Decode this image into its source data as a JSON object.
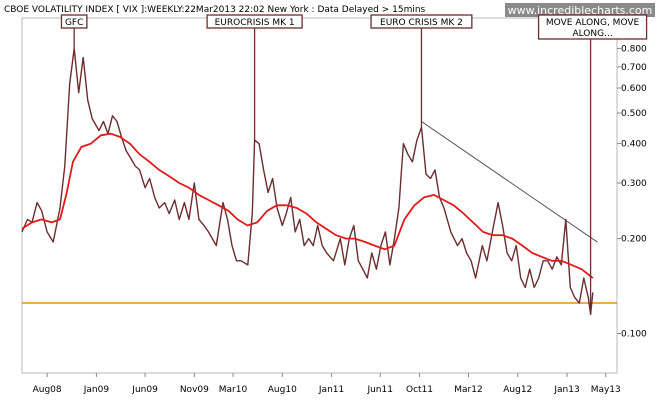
{
  "header": {
    "title": "CBOE VOLATILITY INDEX [ VIX ]:WEEKLY:22Mar2013 22:02 New York : Data Delayed > 15mins",
    "watermark": "www.incrediblecharts.com"
  },
  "chart_data": {
    "type": "line",
    "y_scale": "log",
    "ylim": [
      0.075,
      1.0
    ],
    "xlim": [
      "2008-05-15",
      "2013-06-05"
    ],
    "x_ticks": [
      {
        "label": "Aug08",
        "date": "2008-08-01"
      },
      {
        "label": "Jan09",
        "date": "2009-01-01"
      },
      {
        "label": "Jun09",
        "date": "2009-06-01"
      },
      {
        "label": "Nov09",
        "date": "2009-11-01"
      },
      {
        "label": "Mar10",
        "date": "2010-03-01"
      },
      {
        "label": "Aug10",
        "date": "2010-08-01"
      },
      {
        "label": "Jan11",
        "date": "2011-01-01"
      },
      {
        "label": "Jun11",
        "date": "2011-06-01"
      },
      {
        "label": "Oct11",
        "date": "2011-10-01"
      },
      {
        "label": "Mar12",
        "date": "2012-03-01"
      },
      {
        "label": "Aug12",
        "date": "2012-08-01"
      },
      {
        "label": "Jan13",
        "date": "2013-01-01"
      },
      {
        "label": "May13",
        "date": "2013-05-01"
      }
    ],
    "y_ticks": [
      {
        "label": "0.900",
        "value": 0.9
      },
      {
        "label": "0.800",
        "value": 0.8
      },
      {
        "label": "0.700",
        "value": 0.7
      },
      {
        "label": "0.600",
        "value": 0.6
      },
      {
        "label": "0.500",
        "value": 0.5
      },
      {
        "label": "0.400",
        "value": 0.4
      },
      {
        "label": "0.300",
        "value": 0.3
      },
      {
        "label": "0.200",
        "value": 0.2
      },
      {
        "label": "0.100",
        "value": 0.1
      }
    ],
    "series": [
      {
        "color": "#6b2d2d",
        "points": [
          [
            "2008-05-15",
            0.21
          ],
          [
            "2008-06-01",
            0.23
          ],
          [
            "2008-06-15",
            0.225
          ],
          [
            "2008-07-01",
            0.26
          ],
          [
            "2008-07-15",
            0.245
          ],
          [
            "2008-08-01",
            0.21
          ],
          [
            "2008-08-20",
            0.195
          ],
          [
            "2008-09-10",
            0.25
          ],
          [
            "2008-09-25",
            0.34
          ],
          [
            "2008-10-10",
            0.62
          ],
          [
            "2008-10-24",
            0.8
          ],
          [
            "2008-11-07",
            0.58
          ],
          [
            "2008-11-21",
            0.75
          ],
          [
            "2008-12-05",
            0.55
          ],
          [
            "2008-12-19",
            0.48
          ],
          [
            "2009-01-09",
            0.44
          ],
          [
            "2009-01-23",
            0.47
          ],
          [
            "2009-02-06",
            0.43
          ],
          [
            "2009-02-20",
            0.49
          ],
          [
            "2009-03-06",
            0.47
          ],
          [
            "2009-03-20",
            0.42
          ],
          [
            "2009-04-03",
            0.38
          ],
          [
            "2009-04-17",
            0.36
          ],
          [
            "2009-05-01",
            0.34
          ],
          [
            "2009-05-15",
            0.33
          ],
          [
            "2009-06-01",
            0.29
          ],
          [
            "2009-06-15",
            0.31
          ],
          [
            "2009-07-01",
            0.27
          ],
          [
            "2009-07-15",
            0.25
          ],
          [
            "2009-08-01",
            0.26
          ],
          [
            "2009-08-15",
            0.24
          ],
          [
            "2009-09-01",
            0.265
          ],
          [
            "2009-09-15",
            0.23
          ],
          [
            "2009-10-01",
            0.26
          ],
          [
            "2009-10-15",
            0.23
          ],
          [
            "2009-11-01",
            0.3
          ],
          [
            "2009-11-15",
            0.23
          ],
          [
            "2009-12-01",
            0.22
          ],
          [
            "2009-12-15",
            0.21
          ],
          [
            "2010-01-08",
            0.19
          ],
          [
            "2010-01-29",
            0.26
          ],
          [
            "2010-02-12",
            0.23
          ],
          [
            "2010-02-26",
            0.19
          ],
          [
            "2010-03-12",
            0.17
          ],
          [
            "2010-03-26",
            0.17
          ],
          [
            "2010-04-16",
            0.165
          ],
          [
            "2010-04-30",
            0.24
          ],
          [
            "2010-05-07",
            0.41
          ],
          [
            "2010-05-21",
            0.4
          ],
          [
            "2010-06-04",
            0.33
          ],
          [
            "2010-06-18",
            0.28
          ],
          [
            "2010-07-02",
            0.31
          ],
          [
            "2010-07-16",
            0.25
          ],
          [
            "2010-08-01",
            0.22
          ],
          [
            "2010-08-13",
            0.24
          ],
          [
            "2010-08-27",
            0.27
          ],
          [
            "2010-09-10",
            0.21
          ],
          [
            "2010-09-24",
            0.23
          ],
          [
            "2010-10-08",
            0.19
          ],
          [
            "2010-10-22",
            0.2
          ],
          [
            "2010-11-05",
            0.19
          ],
          [
            "2010-11-19",
            0.22
          ],
          [
            "2010-12-03",
            0.19
          ],
          [
            "2010-12-17",
            0.18
          ],
          [
            "2011-01-07",
            0.17
          ],
          [
            "2011-01-28",
            0.2
          ],
          [
            "2011-02-11",
            0.165
          ],
          [
            "2011-02-25",
            0.2
          ],
          [
            "2011-03-11",
            0.22
          ],
          [
            "2011-03-25",
            0.17
          ],
          [
            "2011-04-08",
            0.16
          ],
          [
            "2011-04-22",
            0.15
          ],
          [
            "2011-05-06",
            0.18
          ],
          [
            "2011-05-20",
            0.16
          ],
          [
            "2011-06-03",
            0.19
          ],
          [
            "2011-06-17",
            0.21
          ],
          [
            "2011-07-01",
            0.165
          ],
          [
            "2011-07-15",
            0.2
          ],
          [
            "2011-07-29",
            0.25
          ],
          [
            "2011-08-05",
            0.32
          ],
          [
            "2011-08-12",
            0.4
          ],
          [
            "2011-08-26",
            0.37
          ],
          [
            "2011-09-09",
            0.35
          ],
          [
            "2011-09-23",
            0.41
          ],
          [
            "2011-10-07",
            0.45
          ],
          [
            "2011-10-21",
            0.32
          ],
          [
            "2011-11-04",
            0.31
          ],
          [
            "2011-11-18",
            0.33
          ],
          [
            "2011-12-02",
            0.27
          ],
          [
            "2011-12-16",
            0.25
          ],
          [
            "2012-01-06",
            0.21
          ],
          [
            "2012-01-27",
            0.19
          ],
          [
            "2012-02-10",
            0.2
          ],
          [
            "2012-02-24",
            0.18
          ],
          [
            "2012-03-09",
            0.17
          ],
          [
            "2012-03-23",
            0.15
          ],
          [
            "2012-04-13",
            0.19
          ],
          [
            "2012-04-27",
            0.17
          ],
          [
            "2012-05-18",
            0.22
          ],
          [
            "2012-06-01",
            0.26
          ],
          [
            "2012-06-15",
            0.22
          ],
          [
            "2012-06-29",
            0.18
          ],
          [
            "2012-07-13",
            0.17
          ],
          [
            "2012-07-27",
            0.19
          ],
          [
            "2012-08-10",
            0.15
          ],
          [
            "2012-08-24",
            0.14
          ],
          [
            "2012-09-07",
            0.16
          ],
          [
            "2012-09-21",
            0.14
          ],
          [
            "2012-10-05",
            0.15
          ],
          [
            "2012-10-19",
            0.17
          ],
          [
            "2012-11-02",
            0.17
          ],
          [
            "2012-11-16",
            0.16
          ],
          [
            "2012-11-30",
            0.175
          ],
          [
            "2012-12-14",
            0.165
          ],
          [
            "2012-12-28",
            0.23
          ],
          [
            "2013-01-11",
            0.14
          ],
          [
            "2013-01-25",
            0.13
          ],
          [
            "2013-02-08",
            0.125
          ],
          [
            "2013-02-22",
            0.15
          ],
          [
            "2013-03-08",
            0.13
          ],
          [
            "2013-03-15",
            0.115
          ],
          [
            "2013-03-22",
            0.135
          ]
        ]
      },
      {
        "color": "#e11b1b",
        "points": [
          [
            "2008-05-15",
            0.215
          ],
          [
            "2008-06-15",
            0.225
          ],
          [
            "2008-07-15",
            0.23
          ],
          [
            "2008-08-15",
            0.225
          ],
          [
            "2008-09-10",
            0.23
          ],
          [
            "2008-10-01",
            0.28
          ],
          [
            "2008-10-20",
            0.35
          ],
          [
            "2008-11-15",
            0.39
          ],
          [
            "2008-12-15",
            0.4
          ],
          [
            "2009-01-15",
            0.425
          ],
          [
            "2009-02-15",
            0.43
          ],
          [
            "2009-03-15",
            0.42
          ],
          [
            "2009-04-15",
            0.4
          ],
          [
            "2009-05-15",
            0.37
          ],
          [
            "2009-06-15",
            0.35
          ],
          [
            "2009-07-15",
            0.33
          ],
          [
            "2009-08-15",
            0.315
          ],
          [
            "2009-09-15",
            0.3
          ],
          [
            "2009-10-15",
            0.29
          ],
          [
            "2009-11-15",
            0.275
          ],
          [
            "2009-12-15",
            0.265
          ],
          [
            "2010-01-15",
            0.255
          ],
          [
            "2010-02-15",
            0.245
          ],
          [
            "2010-03-15",
            0.23
          ],
          [
            "2010-04-15",
            0.22
          ],
          [
            "2010-05-15",
            0.225
          ],
          [
            "2010-06-15",
            0.245
          ],
          [
            "2010-07-15",
            0.255
          ],
          [
            "2010-08-15",
            0.255
          ],
          [
            "2010-09-15",
            0.25
          ],
          [
            "2010-10-15",
            0.24
          ],
          [
            "2010-11-15",
            0.225
          ],
          [
            "2010-12-15",
            0.215
          ],
          [
            "2011-01-15",
            0.205
          ],
          [
            "2011-02-15",
            0.2
          ],
          [
            "2011-03-15",
            0.2
          ],
          [
            "2011-04-15",
            0.195
          ],
          [
            "2011-05-15",
            0.19
          ],
          [
            "2011-06-15",
            0.185
          ],
          [
            "2011-07-15",
            0.19
          ],
          [
            "2011-08-15",
            0.23
          ],
          [
            "2011-09-15",
            0.255
          ],
          [
            "2011-10-15",
            0.27
          ],
          [
            "2011-11-15",
            0.275
          ],
          [
            "2011-12-15",
            0.265
          ],
          [
            "2012-01-15",
            0.255
          ],
          [
            "2012-02-15",
            0.24
          ],
          [
            "2012-03-15",
            0.225
          ],
          [
            "2012-04-15",
            0.21
          ],
          [
            "2012-05-15",
            0.205
          ],
          [
            "2012-06-15",
            0.205
          ],
          [
            "2012-07-15",
            0.2
          ],
          [
            "2012-08-15",
            0.19
          ],
          [
            "2012-09-15",
            0.18
          ],
          [
            "2012-10-15",
            0.175
          ],
          [
            "2012-11-15",
            0.17
          ],
          [
            "2012-12-15",
            0.17
          ],
          [
            "2013-01-15",
            0.165
          ],
          [
            "2013-02-15",
            0.16
          ],
          [
            "2013-03-22",
            0.15
          ]
        ]
      }
    ],
    "trendline": {
      "color": "#555555",
      "from": [
        "2011-10-07",
        0.47
      ],
      "to": [
        "2013-04-05",
        0.195
      ]
    },
    "support_line": {
      "color": "#f58a10",
      "value": 0.125
    },
    "annotations": [
      {
        "label": "GFC",
        "date": "2008-10-24"
      },
      {
        "label": "EUROCRISIS MK 1",
        "date": "2010-05-07"
      },
      {
        "label": "EURO CRISIS MK 2",
        "date": "2011-10-07"
      },
      {
        "label": "MOVE ALONG, MOVE ALONG...",
        "date": "2013-03-15"
      }
    ]
  }
}
